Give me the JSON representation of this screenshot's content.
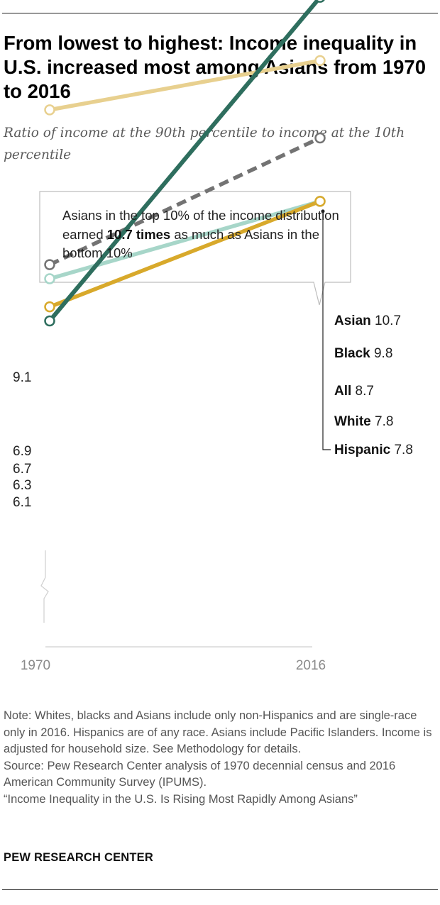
{
  "title": "From lowest to highest: Income inequality in U.S. increased most among Asians from 1970 to 2016",
  "subtitle": "Ratio of income at the 90th percentile to income at the 10th percentile",
  "callout": {
    "part1": "Asians in the top 10% of the income distribution earned ",
    "bold": "10.7 times",
    "part2": " as much as Asians in the bottom 10%"
  },
  "colors": {
    "asian": "#2e6e5e",
    "black": "#e8d08f",
    "all": "#737373",
    "white": "#a7d6c9",
    "hispanic": "#d8a92b"
  },
  "chart_data": {
    "type": "line",
    "x": [
      "1970",
      "2016"
    ],
    "series": [
      {
        "name": "Asian",
        "values": [
          6.1,
          10.7
        ],
        "start_label": "6.1",
        "end_value_label": "10.7",
        "color": "#2e6e5e"
      },
      {
        "name": "Black",
        "values": [
          9.1,
          9.8
        ],
        "start_label": "9.1",
        "end_value_label": "9.8",
        "color": "#e8d08f"
      },
      {
        "name": "All",
        "values": [
          6.9,
          8.7
        ],
        "start_label": "6.9",
        "end_value_label": "8.7",
        "color": "#737373",
        "dashed": true
      },
      {
        "name": "White",
        "values": [
          6.7,
          7.8
        ],
        "start_label": "6.7",
        "end_value_label": "7.8",
        "color": "#a7d6c9"
      },
      {
        "name": "Hispanic",
        "values": [
          6.3,
          7.8
        ],
        "start_label": "6.3",
        "end_value_label": "7.8",
        "color": "#d8a92b"
      }
    ],
    "ylim": [
      4,
      11
    ],
    "axis_break": true,
    "grid": false,
    "legend": "direct labels at line ends"
  },
  "notes": [
    "Note: Whites, blacks and Asians include only non-Hispanics and are single-race only in 2016. Hispanics are of any race. Asians include Pacific Islanders. Income is adjusted for household size. See Methodology for details.",
    "Source: Pew Research Center analysis of 1970 decennial census and 2016 American Community Survey (IPUMS).",
    "“Income Inequality in the U.S. Is Rising Most Rapidly Among Asians”"
  ],
  "branding": "PEW RESEARCH CENTER"
}
